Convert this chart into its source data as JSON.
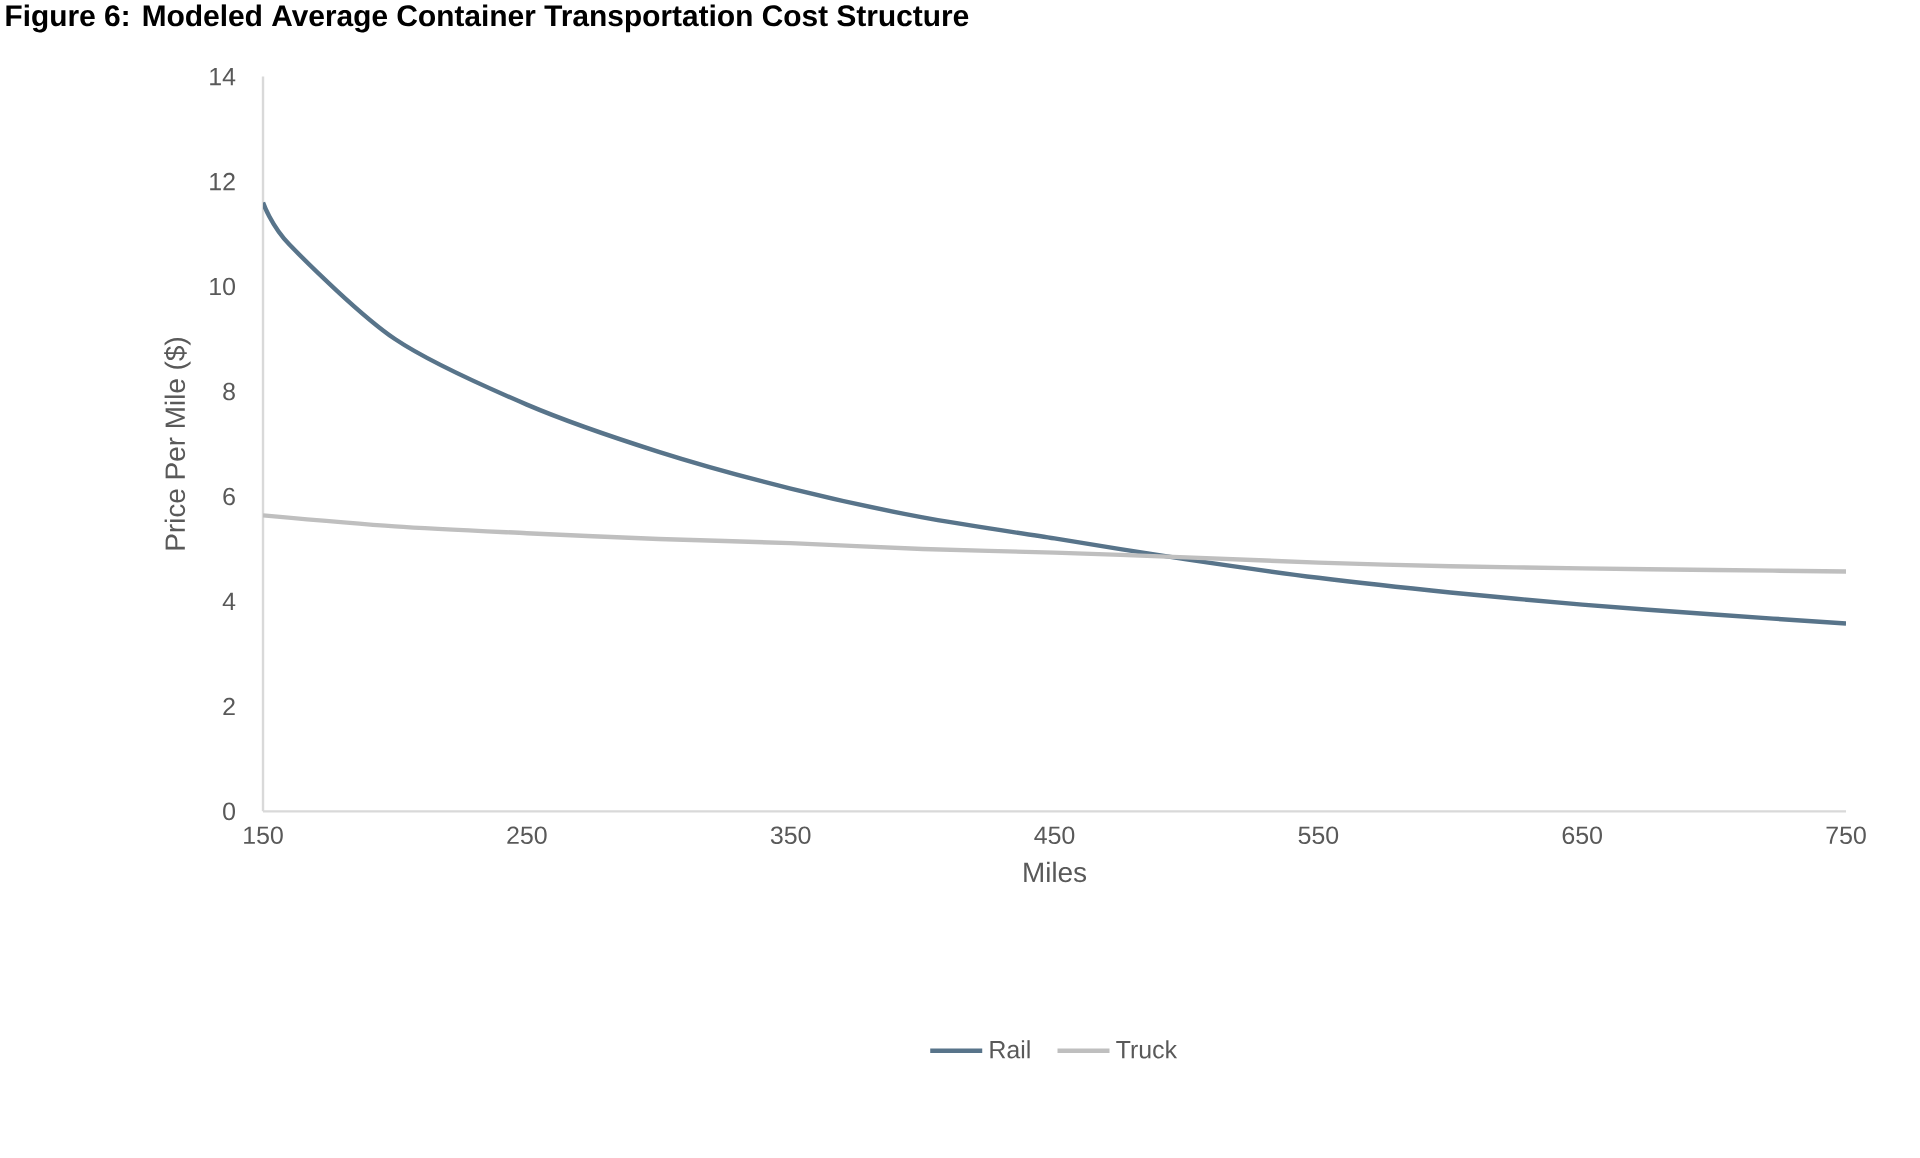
{
  "chart_data": {
    "type": "line",
    "title": "Figure 6: Modeled Average Container Transportation Cost Structure",
    "xlabel": "Miles",
    "ylabel": "Price Per Mile ($)",
    "xlim": [
      150,
      750
    ],
    "xticks": [
      150,
      250,
      350,
      450,
      550,
      650,
      750
    ],
    "ylim": [
      0,
      14
    ],
    "yticks": [
      0,
      2,
      4,
      6,
      8,
      10,
      12,
      14
    ],
    "grid": false,
    "legend": "bottom",
    "marker": "none",
    "line_style": "solid",
    "series": [
      {
        "name": "Rail",
        "color": "#58748a",
        "x": [
          150,
          160,
          200,
          250,
          300,
          350,
          400,
          450,
          500,
          550,
          600,
          650,
          700,
          750
        ],
        "values": [
          11.6,
          10.8,
          9.0,
          7.75,
          6.85,
          6.15,
          5.6,
          5.2,
          4.8,
          4.45,
          4.17,
          3.94,
          3.75,
          3.58
        ]
      },
      {
        "name": "Truck",
        "color": "#bfbfbf",
        "x": [
          150,
          200,
          250,
          300,
          350,
          400,
          450,
          500,
          550,
          600,
          650,
          700,
          750
        ],
        "values": [
          5.64,
          5.43,
          5.3,
          5.19,
          5.11,
          5.0,
          4.93,
          4.84,
          4.74,
          4.67,
          4.63,
          4.6,
          4.57
        ]
      }
    ]
  }
}
